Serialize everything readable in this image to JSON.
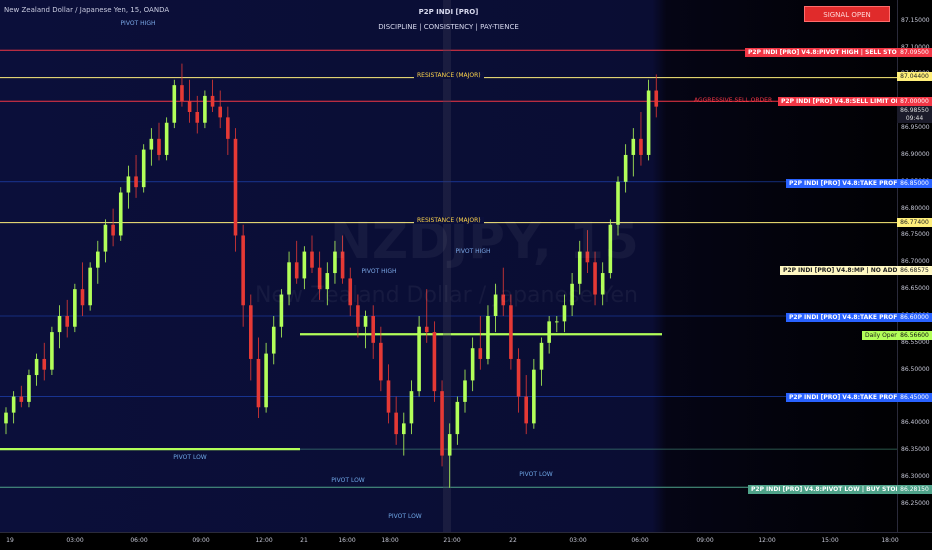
{
  "header": {
    "symbol": "New Zealand Dollar / Japanese Yen, 15, OANDA",
    "indicator_title": "P2P INDI [PRO]",
    "tagline": "DISCIPLINE  |  CONSISTENCY  |  PAY-TIENCE",
    "signal_button": "SIGNAL OPEN"
  },
  "watermark": {
    "ticker": "NZDJPY, 15",
    "name": "New Zealand Dollar / Japanese Yen"
  },
  "levels": {
    "resistance_major_label": "RESISTANCE (MAJOR)",
    "aggressive_sell_label": "AGGRESSIVE SELL ORDER",
    "pivot_high_stoploss": "P2P INDI [PRO] V4.8:PIVOT HIGH | SELL STOPLOSS",
    "sell_limit_order": "P2P INDI [PRO] V4.8:SELL LIMIT ORDER @",
    "take_profit_1": "P2P INDI [PRO] V4.8:TAKE PROFIT 1 @",
    "mp_no_add_ons": "P2P INDI [PRO] V4.8:MP | NO ADD ONS",
    "take_profit_2": "P2P INDI [PRO] V4.8:TAKE PROFIT 2 @",
    "daily_open": "Daily Open",
    "take_profit_3": "P2P INDI [PRO] V4.8:TAKE PROFIT 3 @",
    "pivot_low_stoploss": "P2P INDI [PRO] V4.8:PIVOT LOW | BUY STOPLOSS"
  },
  "pivots": {
    "pivot_high_1": "PIVOT HIGH",
    "pivot_high_2": "PIVOT HIGH",
    "pivot_high_3": "PIVOT HIGH",
    "pivot_low_1": "PIVOT LOW",
    "pivot_low_2": "PIVOT LOW",
    "pivot_low_3": "PIVOT LOW",
    "pivot_low_4": "PIVOT LOW"
  },
  "y_axis": {
    "ticks": [
      "87.15000",
      "87.10000",
      "87.05000",
      "87.00000",
      "86.95000",
      "86.90000",
      "86.85000",
      "86.80000",
      "86.75000",
      "86.70000",
      "86.65000",
      "86.60000",
      "86.55000",
      "86.50000",
      "86.45000",
      "86.40000",
      "86.35000",
      "86.30000",
      "86.25000"
    ],
    "tick_values": [
      87.15,
      87.1,
      87.05,
      87.0,
      86.95,
      86.9,
      86.85,
      86.8,
      86.75,
      86.7,
      86.65,
      86.6,
      86.55,
      86.5,
      86.45,
      86.4,
      86.35,
      86.3,
      86.25
    ],
    "labels": {
      "pivot_high_price": "87.09500",
      "resistance_price": "87.04400",
      "sell_limit_price": "87.00000",
      "last_price": "86.98550",
      "countdown": "09:44",
      "tp1_price": "86.85000",
      "resistance2_price": "86.77400",
      "mp_price": "86.68575",
      "tp2_price": "86.60000",
      "daily_open_price": "86.56600",
      "tp3_price": "86.45000",
      "pivot_low_price": "86.28150"
    },
    "colors": {
      "red": "#f23645",
      "yellow": "#ffef7a",
      "blue": "#2962ff",
      "green": "#b2ff59",
      "teal": "#4fa38a"
    }
  },
  "x_axis": {
    "ticks": [
      "19",
      "03:00",
      "06:00",
      "09:00",
      "12:00",
      "21",
      "16:00",
      "18:00",
      "21:00",
      "22",
      "03:00",
      "06:00",
      "09:00",
      "12:00",
      "15:00",
      "18:00"
    ]
  },
  "chart_data": {
    "type": "candlestick",
    "ylim": [
      86.22,
      87.17
    ],
    "bull_color": "#b2ff59",
    "bear_color": "#e53935",
    "series": [
      {
        "name": "candles",
        "values": [
          [
            86.4,
            86.43,
            86.38,
            86.42
          ],
          [
            86.42,
            86.46,
            86.4,
            86.45
          ],
          [
            86.45,
            86.47,
            86.43,
            86.44
          ],
          [
            86.44,
            86.5,
            86.43,
            86.49
          ],
          [
            86.49,
            86.53,
            86.47,
            86.52
          ],
          [
            86.52,
            86.55,
            86.48,
            86.5
          ],
          [
            86.5,
            86.58,
            86.49,
            86.57
          ],
          [
            86.57,
            86.62,
            86.54,
            86.6
          ],
          [
            86.6,
            86.63,
            86.56,
            86.58
          ],
          [
            86.58,
            86.66,
            86.57,
            86.65
          ],
          [
            86.65,
            86.7,
            86.6,
            86.62
          ],
          [
            86.62,
            86.7,
            86.61,
            86.69
          ],
          [
            86.69,
            86.74,
            86.66,
            86.72
          ],
          [
            86.72,
            86.78,
            86.7,
            86.77
          ],
          [
            86.77,
            86.8,
            86.73,
            86.75
          ],
          [
            86.75,
            86.84,
            86.74,
            86.83
          ],
          [
            86.83,
            86.88,
            86.8,
            86.86
          ],
          [
            86.86,
            86.9,
            86.82,
            86.84
          ],
          [
            86.84,
            86.92,
            86.83,
            86.91
          ],
          [
            86.91,
            86.95,
            86.88,
            86.93
          ],
          [
            86.93,
            86.96,
            86.89,
            86.9
          ],
          [
            86.9,
            86.97,
            86.89,
            86.96
          ],
          [
            86.96,
            87.04,
            86.95,
            87.03
          ],
          [
            87.03,
            87.07,
            86.99,
            87.0
          ],
          [
            87.0,
            87.04,
            86.96,
            86.98
          ],
          [
            86.98,
            87.01,
            86.94,
            86.96
          ],
          [
            86.96,
            87.02,
            86.95,
            87.01
          ],
          [
            87.01,
            87.04,
            86.98,
            86.99
          ],
          [
            86.99,
            87.02,
            86.95,
            86.97
          ],
          [
            86.97,
            86.99,
            86.9,
            86.93
          ],
          [
            86.93,
            86.95,
            86.72,
            86.75
          ],
          [
            86.75,
            86.77,
            86.58,
            86.62
          ],
          [
            86.62,
            86.64,
            86.48,
            86.52
          ],
          [
            86.52,
            86.56,
            86.41,
            86.43
          ],
          [
            86.43,
            86.55,
            86.42,
            86.53
          ],
          [
            86.53,
            86.6,
            86.51,
            86.58
          ],
          [
            86.58,
            86.65,
            86.56,
            86.64
          ],
          [
            86.64,
            86.72,
            86.62,
            86.7
          ],
          [
            86.7,
            86.74,
            86.66,
            86.67
          ],
          [
            86.67,
            86.73,
            86.65,
            86.72
          ],
          [
            86.72,
            86.75,
            86.68,
            86.69
          ],
          [
            86.69,
            86.72,
            86.63,
            86.65
          ],
          [
            86.65,
            86.7,
            86.62,
            86.68
          ],
          [
            86.68,
            86.74,
            86.66,
            86.72
          ],
          [
            86.72,
            86.75,
            86.66,
            86.67
          ],
          [
            86.67,
            86.69,
            86.6,
            86.62
          ],
          [
            86.62,
            86.64,
            86.56,
            86.58
          ],
          [
            86.58,
            86.61,
            86.54,
            86.6
          ],
          [
            86.6,
            86.62,
            86.52,
            86.55
          ],
          [
            86.55,
            86.58,
            86.46,
            86.48
          ],
          [
            86.48,
            86.51,
            86.4,
            86.42
          ],
          [
            86.42,
            86.45,
            86.36,
            86.38
          ],
          [
            86.38,
            86.42,
            86.34,
            86.4
          ],
          [
            86.4,
            86.48,
            86.38,
            86.46
          ],
          [
            86.46,
            86.6,
            86.45,
            86.58
          ],
          [
            86.58,
            86.65,
            86.55,
            86.57
          ],
          [
            86.57,
            86.59,
            86.44,
            86.46
          ],
          [
            86.46,
            86.48,
            86.32,
            86.34
          ],
          [
            86.34,
            86.4,
            86.28,
            86.38
          ],
          [
            86.38,
            86.45,
            86.36,
            86.44
          ],
          [
            86.44,
            86.5,
            86.42,
            86.48
          ],
          [
            86.48,
            86.56,
            86.46,
            86.54
          ],
          [
            86.54,
            86.6,
            86.5,
            86.52
          ],
          [
            86.52,
            86.62,
            86.51,
            86.6
          ],
          [
            86.6,
            86.66,
            86.57,
            86.64
          ],
          [
            86.64,
            86.69,
            86.6,
            86.62
          ],
          [
            86.62,
            86.64,
            86.5,
            86.52
          ],
          [
            86.52,
            86.54,
            86.42,
            86.45
          ],
          [
            86.45,
            86.49,
            86.38,
            86.4
          ],
          [
            86.4,
            86.52,
            86.39,
            86.5
          ],
          [
            86.5,
            86.56,
            86.47,
            86.55
          ],
          [
            86.55,
            86.6,
            86.53,
            86.59
          ],
          [
            86.59,
            86.6,
            86.57,
            86.59
          ],
          [
            86.59,
            86.64,
            86.57,
            86.62
          ],
          [
            86.62,
            86.68,
            86.6,
            86.66
          ],
          [
            86.66,
            86.74,
            86.64,
            86.72
          ],
          [
            86.72,
            86.76,
            86.68,
            86.7
          ],
          [
            86.7,
            86.72,
            86.62,
            86.64
          ],
          [
            86.64,
            86.7,
            86.62,
            86.68
          ],
          [
            86.68,
            86.78,
            86.67,
            86.77
          ],
          [
            86.77,
            86.86,
            86.75,
            86.85
          ],
          [
            86.85,
            86.92,
            86.83,
            86.9
          ],
          [
            86.9,
            86.95,
            86.86,
            86.93
          ],
          [
            86.93,
            86.98,
            86.88,
            86.9
          ],
          [
            86.9,
            87.04,
            86.89,
            87.02
          ],
          [
            87.02,
            87.05,
            86.97,
            86.99
          ]
        ]
      }
    ]
  }
}
